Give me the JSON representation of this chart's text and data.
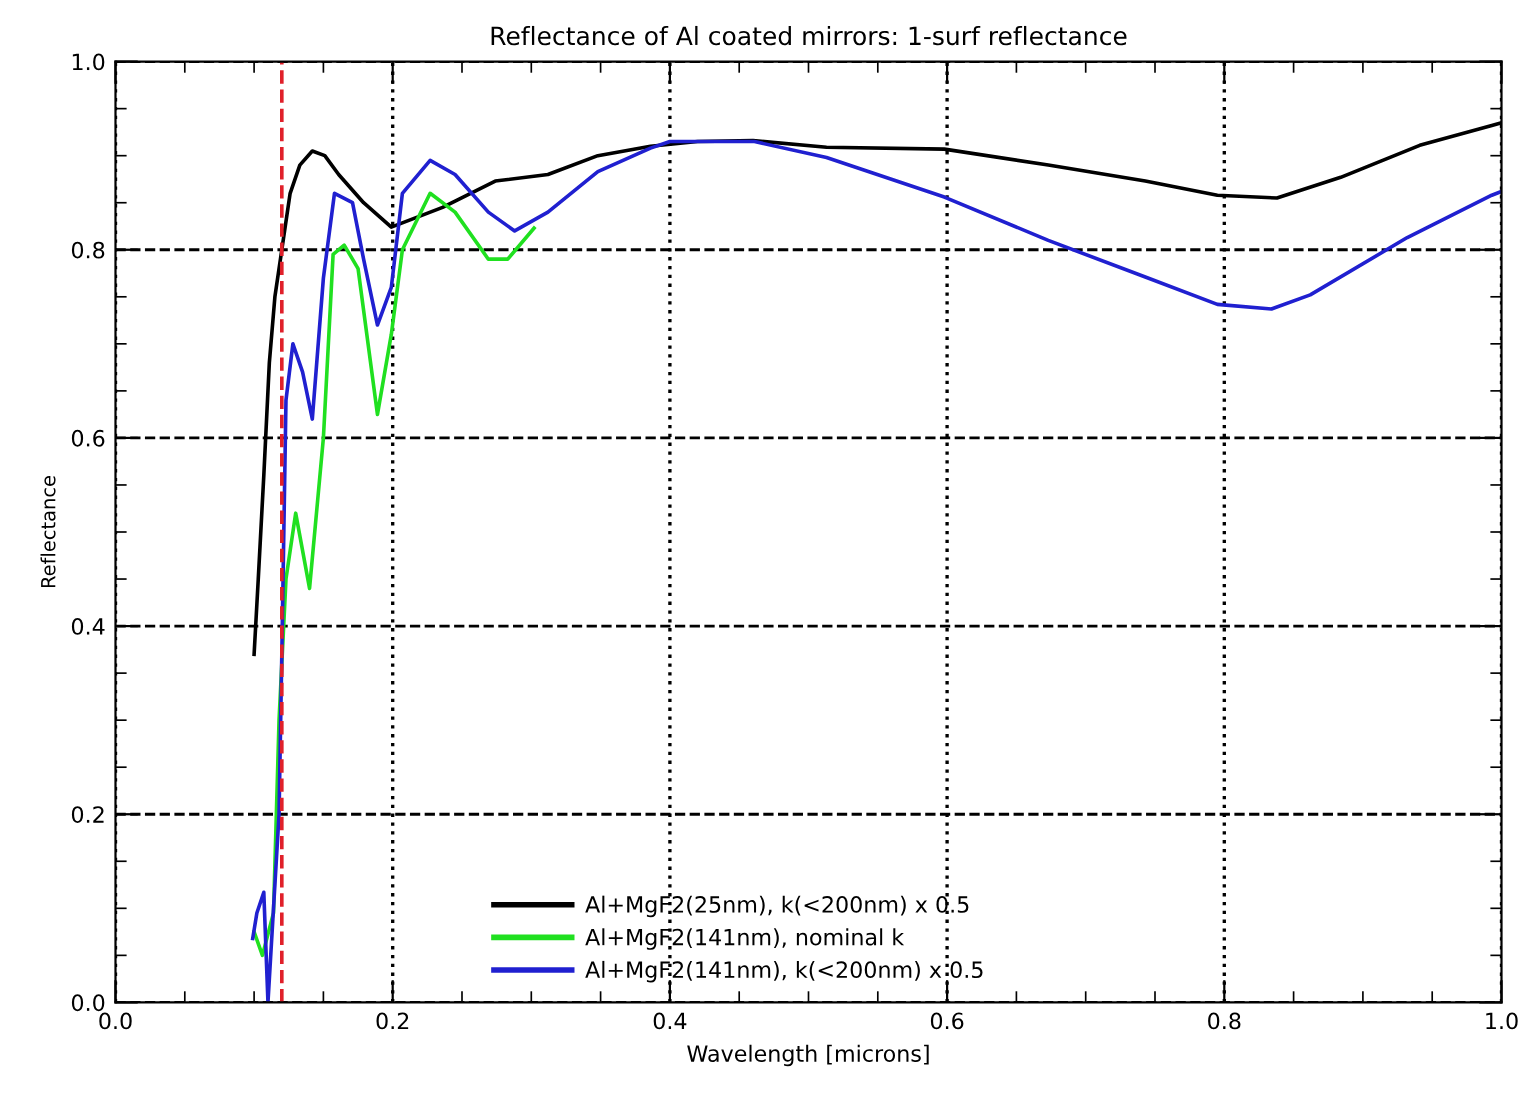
{
  "chart_data": {
    "type": "line",
    "title": "Reflectance of Al coated mirrors: 1-surf reflectance",
    "xlabel": "Wavelength [microns]",
    "ylabel": "Reflectance",
    "xlim": [
      0,
      1
    ],
    "ylim": [
      0,
      1
    ],
    "xticks": [
      {
        "value": 0,
        "label": "0.0"
      },
      0.2,
      0.4,
      0.6,
      0.8,
      {
        "value": 1,
        "label": "1.0"
      }
    ],
    "yticks": [
      {
        "value": 0,
        "label": "0.0"
      },
      0.2,
      0.4,
      0.6,
      0.8,
      {
        "value": 1,
        "label": "1.0"
      }
    ],
    "grid": true,
    "legend": "bottom",
    "line_style": "solid",
    "marker": "none",
    "ref_lines": [
      {
        "axis": "x",
        "value": 0.12,
        "color": "#e0202a",
        "line_style": "dashed"
      }
    ],
    "series": [
      {
        "name": "Al+MgF2(25nm), k(<200nm) x 0.5",
        "color": "#000000",
        "x": [
          0.1,
          0.103,
          0.107,
          0.111,
          0.115,
          0.12,
          0.126,
          0.133,
          0.142,
          0.151,
          0.161,
          0.179,
          0.199,
          0.236,
          0.274,
          0.312,
          0.348,
          0.386,
          0.42,
          0.46,
          0.513,
          0.598,
          0.673,
          0.743,
          0.795,
          0.838,
          0.884,
          0.941,
          0.993,
          1.0
        ],
        "values": [
          0.37,
          0.45,
          0.56,
          0.68,
          0.75,
          0.8,
          0.86,
          0.89,
          0.905,
          0.9,
          0.88,
          0.85,
          0.824,
          0.845,
          0.873,
          0.88,
          0.9,
          0.91,
          0.915,
          0.916,
          0.909,
          0.907,
          0.89,
          0.873,
          0.858,
          0.855,
          0.877,
          0.911,
          0.932,
          0.935
        ]
      },
      {
        "name": "Al+MgF2(141nm), nominal k",
        "color": "#20e020",
        "x": [
          0.1,
          0.106,
          0.114,
          0.118,
          0.123,
          0.126,
          0.13,
          0.14,
          0.15,
          0.157,
          0.165,
          0.175,
          0.189,
          0.199,
          0.207,
          0.227,
          0.245,
          0.269,
          0.283,
          0.302
        ],
        "values": [
          0.075,
          0.05,
          0.095,
          0.3,
          0.45,
          0.48,
          0.52,
          0.44,
          0.6,
          0.795,
          0.805,
          0.78,
          0.625,
          0.71,
          0.8,
          0.86,
          0.84,
          0.79,
          0.79,
          0.823
        ]
      },
      {
        "name": "Al+MgF2(141nm), k(<200nm) x 0.5",
        "color": "#2020d0",
        "x": [
          0.099,
          0.102,
          0.107,
          0.11,
          0.114,
          0.118,
          0.12,
          0.123,
          0.128,
          0.135,
          0.142,
          0.15,
          0.158,
          0.171,
          0.179,
          0.189,
          0.199,
          0.207,
          0.227,
          0.245,
          0.269,
          0.288,
          0.312,
          0.348,
          0.386,
          0.4,
          0.461,
          0.513,
          0.598,
          0.673,
          0.743,
          0.795,
          0.834,
          0.862,
          0.932,
          0.993,
          1.0
        ],
        "values": [
          0.068,
          0.095,
          0.117,
          0.0,
          0.1,
          0.2,
          0.37,
          0.64,
          0.7,
          0.67,
          0.62,
          0.77,
          0.86,
          0.85,
          0.79,
          0.72,
          0.76,
          0.86,
          0.895,
          0.88,
          0.84,
          0.82,
          0.84,
          0.883,
          0.908,
          0.915,
          0.915,
          0.898,
          0.856,
          0.81,
          0.771,
          0.742,
          0.737,
          0.752,
          0.813,
          0.858,
          0.862
        ]
      }
    ]
  }
}
